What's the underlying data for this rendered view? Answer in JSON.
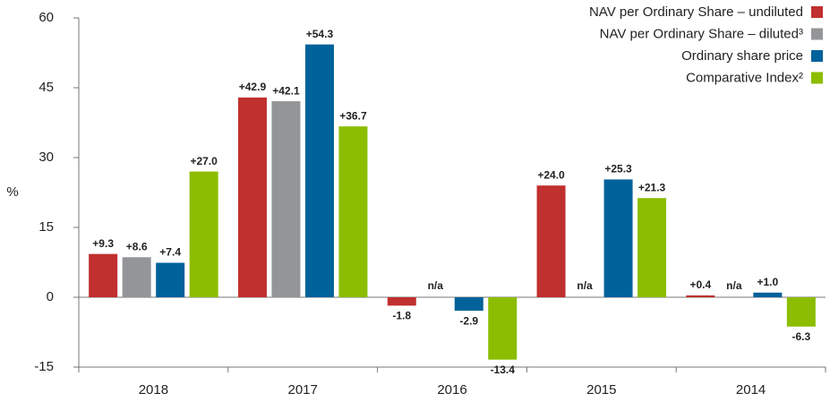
{
  "chart_data": {
    "type": "bar",
    "y_label": "%",
    "categories": [
      "2018",
      "2017",
      "2016",
      "2015",
      "2014"
    ],
    "series": [
      {
        "name": "NAV per Ordinary Share – undiluted",
        "color": "#c0302e",
        "values": [
          9.3,
          42.9,
          -1.8,
          24.0,
          0.4
        ],
        "value_labels": [
          "+9.3",
          "+42.9",
          "-1.8",
          "+24.0",
          "+0.4"
        ]
      },
      {
        "name": "NAV per Ordinary Share – diluted³",
        "color": "#939598",
        "values": [
          8.6,
          42.1,
          null,
          null,
          null
        ],
        "value_labels": [
          "+8.6",
          "+42.1",
          "n/a",
          "n/a",
          "n/a"
        ]
      },
      {
        "name": "Ordinary share price",
        "color": "#00629b",
        "values": [
          7.4,
          54.3,
          -2.9,
          25.3,
          1.0
        ],
        "value_labels": [
          "+7.4",
          "+54.3",
          "-2.9",
          "+25.3",
          "+1.0"
        ]
      },
      {
        "name": "Comparative Index²",
        "color": "#8cbd00",
        "values": [
          27.0,
          36.7,
          -13.4,
          21.3,
          -6.3
        ],
        "value_labels": [
          "+27.0",
          "+36.7",
          "-13.4",
          "+21.3",
          "-6.3"
        ]
      }
    ],
    "ylim": [
      -15,
      60
    ],
    "yticks": [
      -15,
      0,
      15,
      30,
      45,
      60
    ],
    "legend": "upper right"
  }
}
